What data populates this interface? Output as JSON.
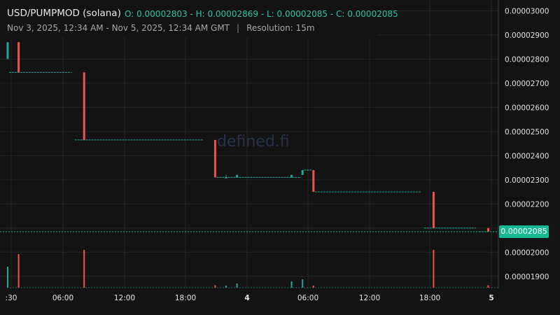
{
  "header": {
    "pair": "USD/PUMPMOD (solana)",
    "ohlc": "O: 0.00002803 - H: 0.00002869 - L: 0.00002085 - C: 0.00002085",
    "range": "Nov 3, 2025, 12:34 AM - Nov 5, 2025, 12:34 AM GMT",
    "separator": "|",
    "resolution": "Resolution: 15m"
  },
  "watermark": "defined.fi",
  "last_price_label": "0.00002085",
  "colors": {
    "up": "#26a69a",
    "down": "#ef5350",
    "background": "#131313",
    "grid": "#262626",
    "price_tag": "#18b893"
  },
  "chart_data": {
    "type": "candlestick",
    "title": "",
    "xlabel": "",
    "ylabel": "",
    "ylim": [
      1.85e-05,
      3.01e-05
    ],
    "x_ticks": [
      ":30",
      "06:00",
      "12:00",
      "18:00",
      "4",
      "06:00",
      "12:00",
      "18:00",
      "5"
    ],
    "y_ticks": [
      "0.00001900",
      "0.00002000",
      "0.00002100",
      "0.00002200",
      "0.00002300",
      "0.00002400",
      "0.00002500",
      "0.00002600",
      "0.00002700",
      "0.00002800",
      "0.00002900",
      "0.00003000"
    ],
    "last_price": 2.085e-05,
    "grid": true,
    "price_levels": [
      {
        "value": 2.745e-05,
        "from": 0,
        "to": 6
      },
      {
        "value": 2.465e-05,
        "from": 6,
        "to": 18
      },
      {
        "value": 2.31e-05,
        "from": 19,
        "to": 27
      },
      {
        "value": 2.34e-05,
        "from": 27,
        "to": 28
      },
      {
        "value": 2.25e-05,
        "from": 28,
        "to": 38
      },
      {
        "value": 2.1e-05,
        "from": 38,
        "to": 43
      },
      {
        "value": 2.085e-05,
        "from": 43,
        "to": 44
      }
    ],
    "candles": [
      {
        "i": 0,
        "open": 2.8e-05,
        "high": 2.87e-05,
        "close": 2.87e-05,
        "low": 2.8e-05,
        "volume": 0.5
      },
      {
        "i": 1,
        "open": 2.87e-05,
        "high": 2.87e-05,
        "close": 2.745e-05,
        "low": 2.745e-05,
        "volume": 0.8
      },
      {
        "i": 7,
        "open": 2.745e-05,
        "high": 2.745e-05,
        "close": 2.465e-05,
        "low": 2.465e-05,
        "volume": 0.9
      },
      {
        "i": 19,
        "open": 2.465e-05,
        "high": 2.465e-05,
        "close": 2.31e-05,
        "low": 2.31e-05,
        "volume": 0.06
      },
      {
        "i": 20,
        "open": 2.31e-05,
        "high": 2.32e-05,
        "close": 2.31e-05,
        "low": 2.31e-05,
        "volume": 0.05
      },
      {
        "i": 21,
        "open": 2.31e-05,
        "high": 2.32e-05,
        "close": 2.32e-05,
        "low": 2.31e-05,
        "volume": 0.1
      },
      {
        "i": 26,
        "open": 2.31e-05,
        "high": 2.32e-05,
        "close": 2.32e-05,
        "low": 2.31e-05,
        "volume": 0.15
      },
      {
        "i": 27,
        "open": 2.32e-05,
        "high": 2.34e-05,
        "close": 2.34e-05,
        "low": 2.32e-05,
        "volume": 0.2
      },
      {
        "i": 28,
        "open": 2.34e-05,
        "high": 2.34e-05,
        "close": 2.25e-05,
        "low": 2.25e-05,
        "volume": 0.05
      },
      {
        "i": 39,
        "open": 2.25e-05,
        "high": 2.25e-05,
        "close": 2.1e-05,
        "low": 2.1e-05,
        "volume": 0.9
      },
      {
        "i": 44,
        "open": 2.1e-05,
        "high": 2.1e-05,
        "close": 2.085e-05,
        "low": 2.085e-05,
        "volume": 0.06
      }
    ]
  }
}
